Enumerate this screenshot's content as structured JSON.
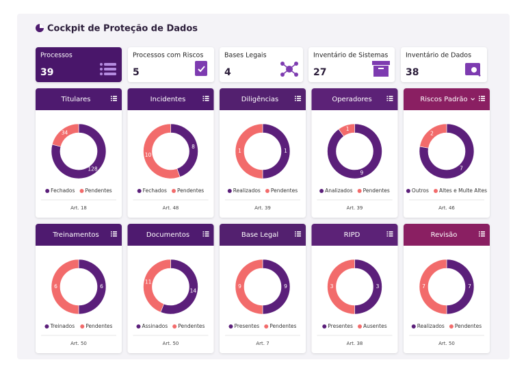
{
  "header": {
    "title": "Cockpit de Proteção de Dados"
  },
  "kpis": [
    {
      "label": "Processos",
      "value": 39,
      "active": true
    },
    {
      "label": "Processos com Riscos",
      "value": 5
    },
    {
      "label": "Bases Legais",
      "value": 4
    },
    {
      "label": "Inventário de Sistemas",
      "value": 27
    },
    {
      "label": "Inventário de Dados",
      "value": 38
    }
  ],
  "chart_data": [
    {
      "type": "pie",
      "title": "Titulares",
      "categories": [
        "Fechados",
        "Pendentes"
      ],
      "values": [
        128,
        34
      ],
      "colors": [
        "#5b1f7a",
        "#f26b6b"
      ],
      "header_color": "#4e1a6f",
      "note": "Art. 18"
    },
    {
      "type": "pie",
      "title": "Incidentes",
      "categories": [
        "Fechados",
        "Pendentes"
      ],
      "values": [
        8,
        10
      ],
      "colors": [
        "#5b1f7a",
        "#f26b6b"
      ],
      "header_color": "#4e1a6f",
      "note": "Art. 48"
    },
    {
      "type": "pie",
      "title": "Diligências",
      "categories": [
        "Realizados",
        "Pendentes"
      ],
      "values": [
        1,
        1
      ],
      "colors": [
        "#5b1f7a",
        "#f26b6b"
      ],
      "header_color": "#53206f",
      "note": "Art. 39"
    },
    {
      "type": "pie",
      "title": "Operadores",
      "categories": [
        "Analizados",
        "Pendentes"
      ],
      "values": [
        9,
        1
      ],
      "colors": [
        "#5b1f7a",
        "#f26b6b"
      ],
      "header_color": "#5c2277",
      "note": "Art. 39"
    },
    {
      "type": "pie",
      "title": "Riscos Padrão",
      "categories": [
        "Outros",
        "Altes e Multe Altes"
      ],
      "values": [
        7,
        2
      ],
      "colors": [
        "#5b1f7a",
        "#f26b6b"
      ],
      "header_color": "#8a1f62",
      "dropdown": true,
      "note": "Art. 46"
    },
    {
      "type": "pie",
      "title": "Treinamentos",
      "categories": [
        "Treinados",
        "Pendentes"
      ],
      "values": [
        6,
        6
      ],
      "colors": [
        "#5b1f7a",
        "#f26b6b"
      ],
      "header_color": "#4e1a6f",
      "note": "Art. 50"
    },
    {
      "type": "pie",
      "title": "Documentos",
      "categories": [
        "Assinados",
        "Pendentes"
      ],
      "values": [
        14,
        11
      ],
      "colors": [
        "#5b1f7a",
        "#f26b6b"
      ],
      "header_color": "#4e1a6f",
      "note": "Art. 50"
    },
    {
      "type": "pie",
      "title": "Base Legal",
      "categories": [
        "Presentes",
        "Pendentes"
      ],
      "values": [
        9,
        9
      ],
      "colors": [
        "#5b1f7a",
        "#f26b6b"
      ],
      "header_color": "#53206f",
      "note": "Art. 7"
    },
    {
      "type": "pie",
      "title": "RIPD",
      "categories": [
        "Presentes",
        "Ausentes"
      ],
      "values": [
        3,
        3
      ],
      "colors": [
        "#5b1f7a",
        "#f26b6b"
      ],
      "header_color": "#5c2277",
      "note": "Art. 38"
    },
    {
      "type": "pie",
      "title": "Revisão",
      "categories": [
        "Realizados",
        "Pendentes"
      ],
      "values": [
        7,
        7
      ],
      "colors": [
        "#5b1f7a",
        "#f26b6b"
      ],
      "header_color": "#8a1f62",
      "note": "Art. 50"
    }
  ]
}
